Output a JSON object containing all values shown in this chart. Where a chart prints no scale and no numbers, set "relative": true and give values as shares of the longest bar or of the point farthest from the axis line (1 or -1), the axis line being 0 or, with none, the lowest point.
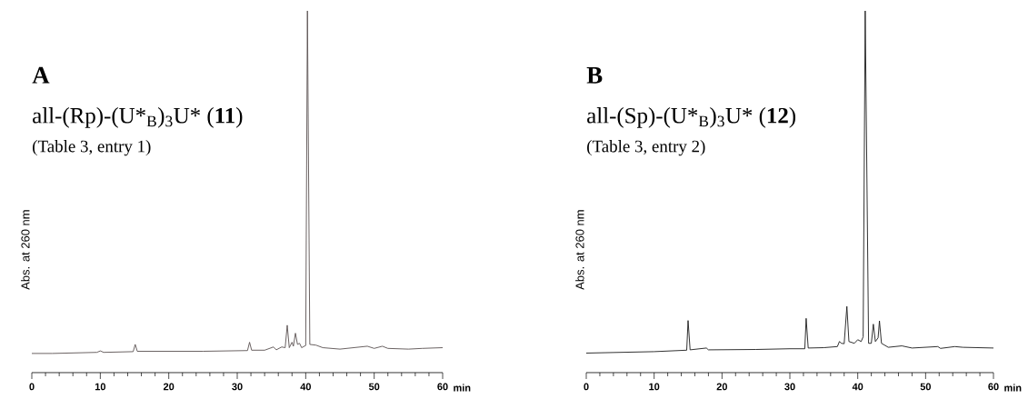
{
  "chart_data": [
    {
      "type": "line",
      "title": "A",
      "subtitle": "all-(Rp)-(U*$_{B}$)$_{3}$U* (**11**)",
      "annotations": [
        "(Table 3, entry 1)"
      ],
      "xlabel": "min",
      "ylabel": "Abs. at 260 nm",
      "relative": true,
      "xlim": [
        0,
        60
      ],
      "xticks": [
        0,
        10,
        20,
        30,
        40,
        50,
        60
      ],
      "series": [
        {
          "color": "#5a5050",
          "x": [
            0,
            3,
            9.5,
            10,
            10.5,
            14.8,
            15.1,
            15.4,
            25,
            31.5,
            31.8,
            32.1,
            34,
            35.3,
            35.7,
            36.5,
            37,
            37.3,
            37.6,
            38,
            38.2,
            38.5,
            38.8,
            39.1,
            39.4,
            40,
            40.25,
            40.6,
            41.5,
            42.5,
            45,
            49,
            50,
            51.2,
            52,
            55,
            57,
            60
          ],
          "values": [
            0.053,
            0.053,
            0.056,
            0.06,
            0.056,
            0.058,
            0.078,
            0.059,
            0.059,
            0.061,
            0.084,
            0.062,
            0.062,
            0.071,
            0.063,
            0.071,
            0.069,
            0.131,
            0.069,
            0.084,
            0.073,
            0.109,
            0.078,
            0.081,
            0.069,
            0.075,
            1,
            0.078,
            0.076,
            0.069,
            0.065,
            0.073,
            0.067,
            0.073,
            0.067,
            0.065,
            0.067,
            0.069
          ]
        }
      ]
    },
    {
      "type": "line",
      "title": "B",
      "subtitle": "all-(Sp)-(U*$_{B}$)$_{3}$U* (**12**)",
      "annotations": [
        "(Table 3, entry 2)"
      ],
      "xlabel": "min",
      "ylabel": "Abs. at 260 nm",
      "relative": true,
      "xlim": [
        0,
        60
      ],
      "xticks": [
        0,
        10,
        20,
        30,
        40,
        50,
        60
      ],
      "series": [
        {
          "color": "#1a1a1a",
          "x": [
            0,
            10,
            14.8,
            15,
            15.3,
            17.7,
            18,
            25,
            30,
            32.2,
            32.4,
            32.7,
            35,
            37,
            37.3,
            37.6,
            38,
            38.4,
            38.7,
            39.5,
            40,
            40.5,
            40.8,
            41.1,
            41.6,
            42,
            42.3,
            42.6,
            43,
            43.2,
            43.5,
            44.5,
            46.5,
            48,
            51.8,
            52.2,
            54.3,
            55.5,
            60
          ],
          "values": [
            0.054,
            0.058,
            0.062,
            0.144,
            0.063,
            0.068,
            0.063,
            0.064,
            0.066,
            0.066,
            0.15,
            0.068,
            0.069,
            0.072,
            0.086,
            0.081,
            0.08,
            0.183,
            0.086,
            0.081,
            0.091,
            0.086,
            0.099,
            1,
            0.081,
            0.081,
            0.134,
            0.086,
            0.096,
            0.143,
            0.081,
            0.07,
            0.074,
            0.068,
            0.072,
            0.067,
            0.072,
            0.07,
            0.068
          ]
        }
      ]
    }
  ]
}
